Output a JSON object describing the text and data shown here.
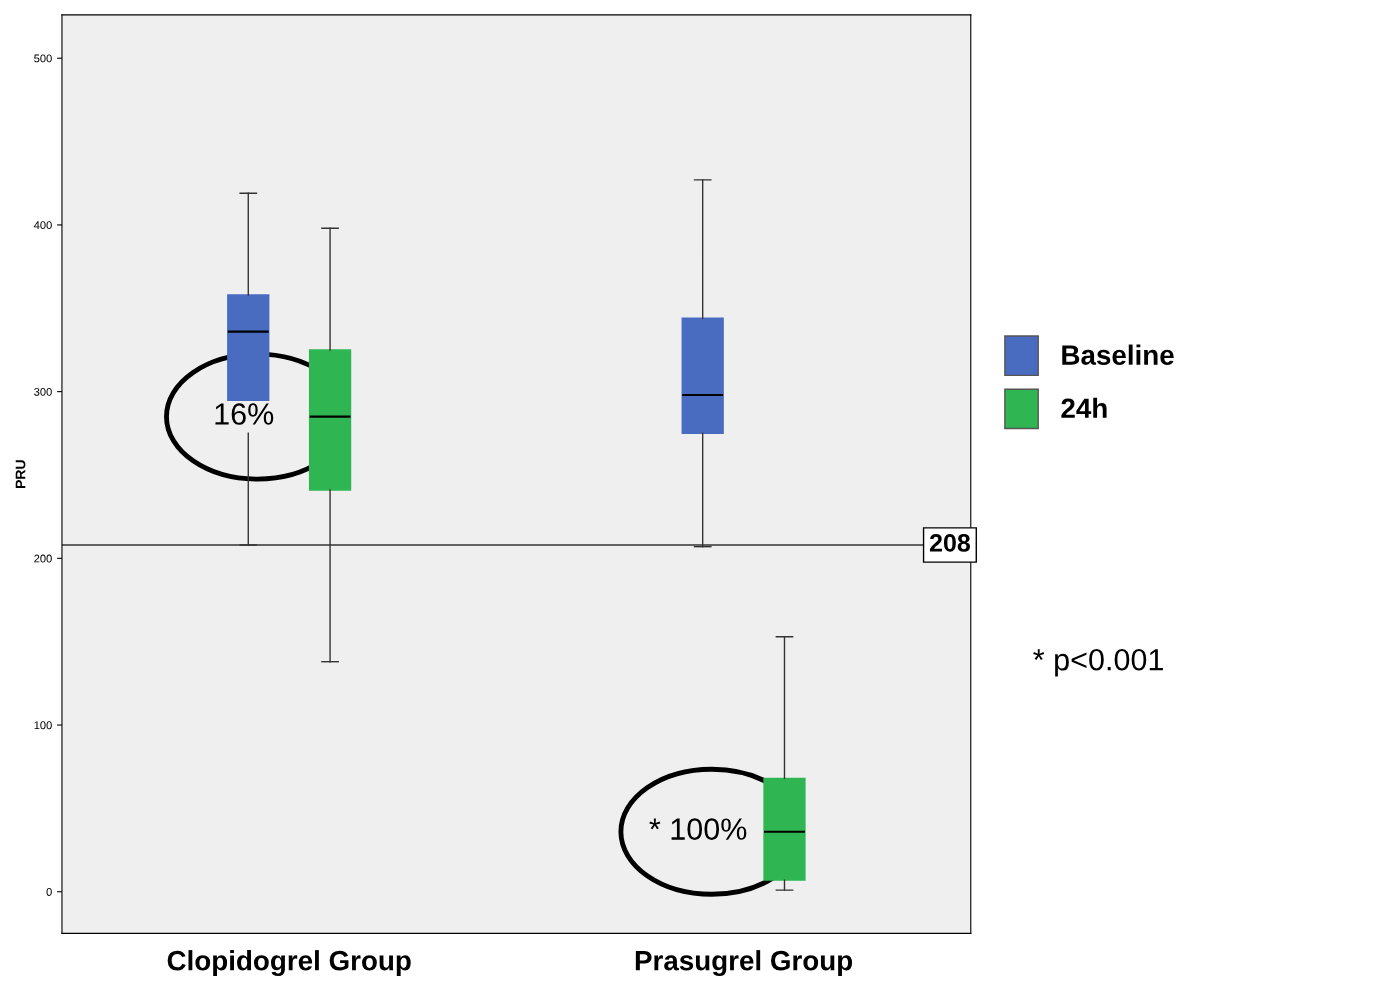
{
  "chart_data": {
    "type": "box",
    "ylabel": "PRU",
    "categories": [
      "Clopidogrel Group",
      "Prasugrel Group"
    ],
    "series": [
      {
        "name": "Baseline",
        "color": "#4a6cc0",
        "boxes": [
          {
            "low": 208,
            "q1": 288,
            "median": 336,
            "q3": 358,
            "high": 419
          },
          {
            "low": 207,
            "q1": 275,
            "median": 298,
            "q3": 344,
            "high": 427
          }
        ]
      },
      {
        "name": "24h",
        "color": "#2fb653",
        "boxes": [
          {
            "low": 138,
            "q1": 241,
            "median": 285,
            "q3": 325,
            "high": 398
          },
          {
            "low": 1,
            "q1": 7,
            "median": 36,
            "q3": 68,
            "high": 153
          }
        ]
      }
    ],
    "ylim": [
      -25,
      526
    ],
    "yticks": [
      0,
      100,
      200,
      300,
      400,
      500
    ],
    "ref_lines": [
      {
        "axis": "y",
        "value": 208,
        "label": "208"
      }
    ],
    "annotations": [
      "16%",
      "* 100%",
      "* p<0.001"
    ],
    "legend": "right",
    "grid": false
  }
}
